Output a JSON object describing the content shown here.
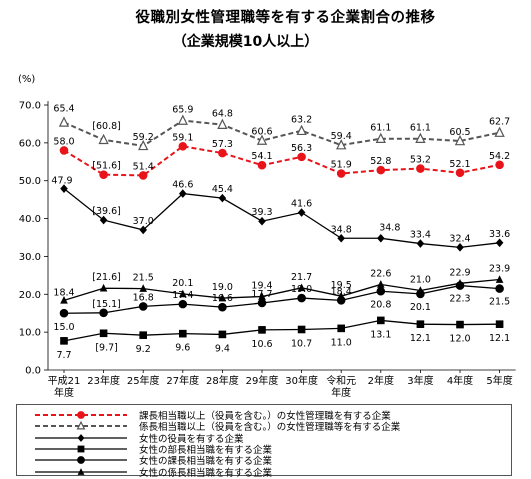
{
  "title": "役職別女性管理職等を有する企業割合の推移",
  "subtitle": "（企業規模10人以上）",
  "chart_data": {
    "type": "line",
    "ylabel": "(%)",
    "ylim": [
      0,
      70
    ],
    "yticks": [
      "0.0",
      "10.0",
      "20.0",
      "30.0",
      "40.0",
      "50.0",
      "60.0",
      "70.0"
    ],
    "categories": [
      [
        "平成21",
        "年度"
      ],
      [
        "23年度"
      ],
      [
        "25年度"
      ],
      [
        "27年度"
      ],
      [
        "28年度"
      ],
      [
        "29年度"
      ],
      [
        "30年度"
      ],
      [
        "令和元",
        "年度"
      ],
      [
        "2年度"
      ],
      [
        "3年度"
      ],
      [
        "4年度"
      ],
      [
        "5年度"
      ]
    ],
    "series": [
      {
        "name": "課長相当職以上（役員を含む。）の女性管理職を有する企業",
        "color": "#e8141a",
        "marker": "circle",
        "dash": true,
        "values": [
          58.0,
          51.6,
          51.4,
          59.1,
          57.3,
          54.1,
          56.3,
          51.9,
          52.8,
          53.2,
          52.1,
          54.2
        ],
        "labels": [
          "58.0",
          "[51.6]",
          "51.4",
          "59.1",
          "57.3",
          "54.1",
          "56.3",
          "51.9",
          "52.8",
          "53.2",
          "52.1",
          "54.2"
        ]
      },
      {
        "name": "係長相当職以上（役員を含む。）の女性管理職等を有する企業",
        "color": "#555555",
        "marker": "triangle-open",
        "dash": true,
        "values": [
          65.4,
          60.8,
          59.2,
          65.9,
          64.8,
          60.6,
          63.2,
          59.4,
          61.1,
          61.1,
          60.5,
          62.7
        ],
        "labels": [
          "65.4",
          "[60.8]",
          "59.2",
          "65.9",
          "64.8",
          "60.6",
          "63.2",
          "59.4",
          "61.1",
          "61.1",
          "60.5",
          "62.7"
        ]
      },
      {
        "name": "女性の役員を有する企業",
        "color": "#000000",
        "marker": "diamond",
        "dash": false,
        "values": [
          47.9,
          39.6,
          37.0,
          46.6,
          45.4,
          39.3,
          41.6,
          34.8,
          34.8,
          33.4,
          32.4,
          33.6
        ],
        "labels": [
          "47.9",
          "[39.6]",
          "37.0",
          "46.6",
          "45.4",
          "39.3",
          "41.6",
          "34.8",
          "34.8",
          "33.4",
          "32.4",
          "33.6"
        ]
      },
      {
        "name": "女性の部長相当職を有する企業",
        "color": "#000000",
        "marker": "square",
        "dash": false,
        "values": [
          7.7,
          9.7,
          9.2,
          9.6,
          9.4,
          10.6,
          10.7,
          11.0,
          13.1,
          12.1,
          12.0,
          12.1
        ],
        "labels": [
          "7.7",
          "[9.7]",
          "9.2",
          "9.6",
          "9.4",
          "10.6",
          "10.7",
          "11.0",
          "13.1",
          "12.1",
          "12.0",
          "12.1"
        ]
      },
      {
        "name": "女性の課長相当職を有する企業",
        "color": "#000000",
        "marker": "circle",
        "dash": false,
        "values": [
          15.0,
          15.1,
          16.8,
          17.4,
          16.6,
          17.7,
          19.0,
          18.4,
          20.8,
          20.1,
          22.3,
          21.5
        ],
        "labels": [
          "15.0",
          "[15.1]",
          "16.8",
          "17.4",
          "16.6",
          "17.7",
          "19.0",
          "18.4",
          "20.8",
          "20.1",
          "22.3",
          "21.5"
        ]
      },
      {
        "name": "女性の係長相当職を有する企業",
        "color": "#000000",
        "marker": "triangle",
        "dash": false,
        "values": [
          18.4,
          21.6,
          21.5,
          20.1,
          19.0,
          19.4,
          21.7,
          19.5,
          22.6,
          21.0,
          22.9,
          23.9
        ],
        "labels": [
          "18.4",
          "[21.6]",
          "21.5",
          "20.1",
          "19.0",
          "19.4",
          "21.7",
          "19.5",
          "22.6",
          "21.0",
          "22.9",
          "23.9"
        ]
      }
    ]
  }
}
